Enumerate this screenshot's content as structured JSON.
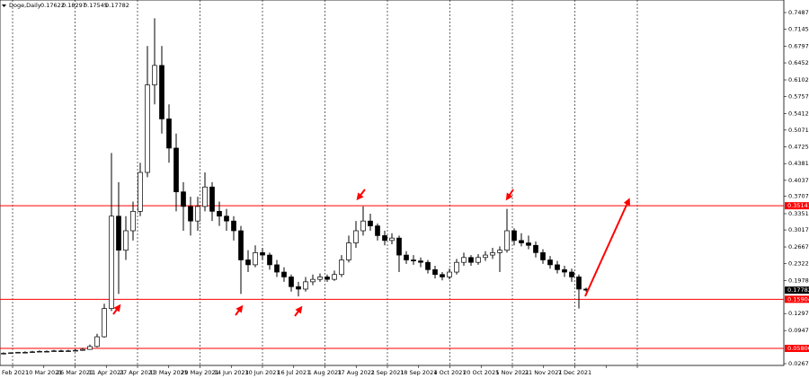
{
  "chart_data": {
    "type": "candlestick",
    "symbol": "Doge,Daily",
    "ohlc": [
      0.17622,
      0.18297,
      0.17545,
      0.17782
    ],
    "categories": [
      "2 Feb 2021",
      "10 Mar 2021",
      "26 Mar 2021",
      "11 Apr 2021",
      "27 Apr 2021",
      "13 May 2021",
      "29 May 2021",
      "14 Jun 2021",
      "30 Jun 2021",
      "16 Jul 2021",
      "1 Aug 2021",
      "17 Aug 2021",
      "2 Sep 2021",
      "18 Sep 2021",
      "4 Oct 2021",
      "20 Oct 2021",
      "5 Nov 2021",
      "21 Nov 2021",
      "7 Dec 2021",
      null,
      null
    ],
    "ylim": [
      0.023,
      0.7746
    ],
    "yticks": [
      0.74875,
      {
        "value": 0.7145,
        "label": "0.71450"
      },
      {
        "value": 0.6797,
        "label": "0.67970"
      },
      0.64525,
      0.61025,
      {
        "value": 0.5757,
        "label": "0.57570"
      },
      0.54125,
      0.50715,
      {
        "value": 0.4725,
        "label": "0.47250"
      },
      {
        "value": 0.4381,
        "label": "0.43810"
      },
      {
        "value": 0.4037,
        "label": "0.40370"
      },
      {
        "value": 0.3707,
        "label": "0.37070"
      },
      0.33515,
      {
        "value": 0.3017,
        "label": "0.30170"
      },
      {
        "value": 0.2667,
        "label": "0.26670"
      },
      {
        "value": 0.2322,
        "label": "0.23220"
      },
      {
        "value": 0.1978,
        "label": "0.19780"
      },
      {
        "value": 0.1297,
        "label": "0.12970"
      },
      {
        "value": 0.0947,
        "label": "0.09470"
      },
      {
        "value": 0.0267,
        "label": "0.02670"
      }
    ],
    "hlines": [
      0.35141,
      0.15904,
      0.05806
    ],
    "hline_color": "#ff0000",
    "candle_color": "#000000",
    "candles": [
      [
        0.047,
        0.05,
        0.046,
        0.048
      ],
      [
        0.048,
        0.05,
        0.047,
        0.049
      ],
      [
        0.049,
        0.051,
        0.048,
        0.05
      ],
      [
        0.05,
        0.052,
        0.049,
        0.05
      ],
      [
        0.05,
        0.053,
        0.049,
        0.051
      ],
      [
        0.051,
        0.054,
        0.05,
        0.052
      ],
      [
        0.052,
        0.054,
        0.05,
        0.052
      ],
      [
        0.052,
        0.055,
        0.051,
        0.053
      ],
      [
        0.053,
        0.055,
        0.051,
        0.052
      ],
      [
        0.052,
        0.055,
        0.051,
        0.053
      ],
      [
        0.053,
        0.056,
        0.052,
        0.054
      ],
      [
        0.054,
        0.059,
        0.053,
        0.056
      ],
      [
        0.056,
        0.066,
        0.055,
        0.062
      ],
      [
        0.062,
        0.088,
        0.06,
        0.082
      ],
      [
        0.082,
        0.15,
        0.08,
        0.14
      ],
      [
        0.14,
        0.46,
        0.135,
        0.33
      ],
      [
        0.33,
        0.4,
        0.17,
        0.26
      ],
      [
        0.26,
        0.33,
        0.24,
        0.3
      ],
      [
        0.3,
        0.36,
        0.28,
        0.34
      ],
      [
        0.34,
        0.44,
        0.33,
        0.42
      ],
      [
        0.42,
        0.68,
        0.41,
        0.6
      ],
      [
        0.6,
        0.737,
        0.56,
        0.64
      ],
      [
        0.64,
        0.68,
        0.5,
        0.53
      ],
      [
        0.53,
        0.56,
        0.44,
        0.47
      ],
      [
        0.47,
        0.5,
        0.34,
        0.38
      ],
      [
        0.38,
        0.4,
        0.3,
        0.35
      ],
      [
        0.35,
        0.37,
        0.29,
        0.32
      ],
      [
        0.32,
        0.37,
        0.3,
        0.35
      ],
      [
        0.35,
        0.42,
        0.34,
        0.39
      ],
      [
        0.39,
        0.4,
        0.32,
        0.34
      ],
      [
        0.34,
        0.36,
        0.31,
        0.33
      ],
      [
        0.33,
        0.345,
        0.3,
        0.32
      ],
      [
        0.32,
        0.33,
        0.28,
        0.3
      ],
      [
        0.3,
        0.31,
        0.17,
        0.24
      ],
      [
        0.24,
        0.26,
        0.215,
        0.23
      ],
      [
        0.23,
        0.27,
        0.225,
        0.255
      ],
      [
        0.255,
        0.265,
        0.24,
        0.25
      ],
      [
        0.25,
        0.255,
        0.22,
        0.23
      ],
      [
        0.23,
        0.24,
        0.205,
        0.215
      ],
      [
        0.215,
        0.225,
        0.195,
        0.205
      ],
      [
        0.205,
        0.21,
        0.175,
        0.185
      ],
      [
        0.185,
        0.195,
        0.165,
        0.18
      ],
      [
        0.18,
        0.205,
        0.175,
        0.195
      ],
      [
        0.195,
        0.21,
        0.188,
        0.2
      ],
      [
        0.2,
        0.212,
        0.195,
        0.205
      ],
      [
        0.205,
        0.21,
        0.195,
        0.2
      ],
      [
        0.2,
        0.218,
        0.197,
        0.21
      ],
      [
        0.21,
        0.25,
        0.205,
        0.24
      ],
      [
        0.24,
        0.29,
        0.235,
        0.275
      ],
      [
        0.275,
        0.32,
        0.265,
        0.3
      ],
      [
        0.3,
        0.35,
        0.29,
        0.32
      ],
      [
        0.32,
        0.335,
        0.3,
        0.31
      ],
      [
        0.31,
        0.315,
        0.28,
        0.29
      ],
      [
        0.29,
        0.3,
        0.27,
        0.28
      ],
      [
        0.28,
        0.295,
        0.272,
        0.285
      ],
      [
        0.285,
        0.29,
        0.215,
        0.25
      ],
      [
        0.25,
        0.258,
        0.232,
        0.24
      ],
      [
        0.24,
        0.25,
        0.23,
        0.238
      ],
      [
        0.238,
        0.245,
        0.225,
        0.235
      ],
      [
        0.235,
        0.24,
        0.212,
        0.22
      ],
      [
        0.22,
        0.228,
        0.202,
        0.21
      ],
      [
        0.21,
        0.215,
        0.198,
        0.205
      ],
      [
        0.205,
        0.222,
        0.2,
        0.215
      ],
      [
        0.215,
        0.242,
        0.21,
        0.235
      ],
      [
        0.235,
        0.255,
        0.228,
        0.245
      ],
      [
        0.245,
        0.25,
        0.228,
        0.235
      ],
      [
        0.235,
        0.252,
        0.23,
        0.245
      ],
      [
        0.245,
        0.258,
        0.238,
        0.25
      ],
      [
        0.25,
        0.265,
        0.242,
        0.255
      ],
      [
        0.255,
        0.268,
        0.215,
        0.26
      ],
      [
        0.26,
        0.345,
        0.255,
        0.3
      ],
      [
        0.3,
        0.305,
        0.27,
        0.28
      ],
      [
        0.28,
        0.295,
        0.268,
        0.275
      ],
      [
        0.275,
        0.29,
        0.262,
        0.27
      ],
      [
        0.27,
        0.278,
        0.245,
        0.255
      ],
      [
        0.255,
        0.262,
        0.232,
        0.24
      ],
      [
        0.24,
        0.248,
        0.222,
        0.23
      ],
      [
        0.23,
        0.238,
        0.212,
        0.22
      ],
      [
        0.22,
        0.228,
        0.205,
        0.215
      ],
      [
        0.215,
        0.222,
        0.195,
        0.205
      ],
      [
        0.205,
        0.21,
        0.14,
        0.18
      ],
      [
        0.18,
        0.183,
        0.175,
        0.178
      ]
    ]
  }
}
